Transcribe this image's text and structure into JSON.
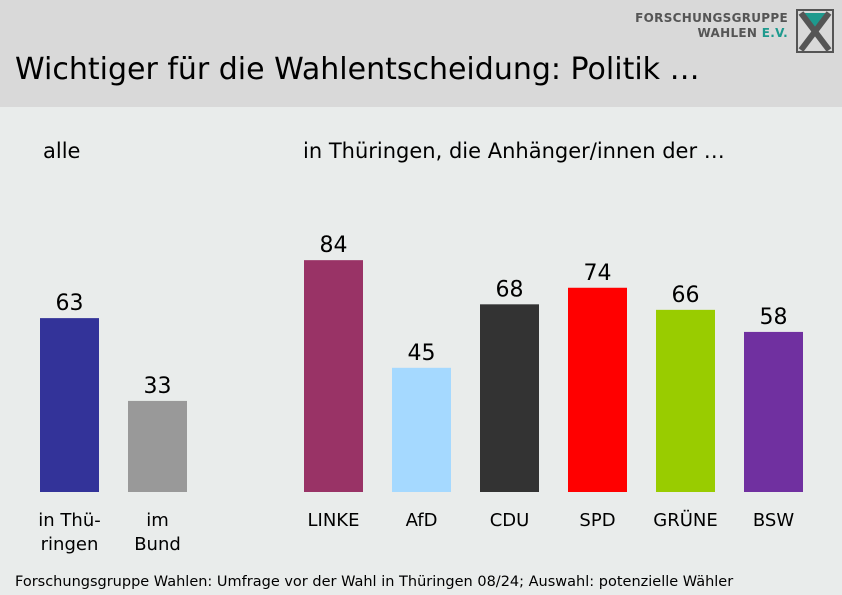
{
  "header": {
    "title": "Wichtiger für die Wahlentscheidung: Politik …",
    "logo_line1": "FORSCHUNGSGRUPPE",
    "logo_line2": "WAHLEN",
    "logo_suffix": "E.V."
  },
  "left_label": "alle",
  "right_label": "in Thüringen, die Anhänger/innen der …",
  "footer": "Forschungsgruppe Wahlen: Umfrage vor der Wahl in Thüringen 08/24;  Auswahl: potenzielle Wähler",
  "chart_data": [
    {
      "type": "bar",
      "title": "alle",
      "categories": [
        "in Thü-\nringen",
        "im\nBund"
      ],
      "values": [
        63,
        33
      ],
      "colors": [
        "#333399",
        "#999999"
      ],
      "ylim": [
        0,
        100
      ]
    },
    {
      "type": "bar",
      "title": "in Thüringen, die Anhänger/innen der …",
      "categories": [
        "LINKE",
        "AfD",
        "CDU",
        "SPD",
        "GRÜNE",
        "BSW"
      ],
      "values": [
        84,
        45,
        68,
        74,
        66,
        58
      ],
      "colors": [
        "#993366",
        "#a5d9ff",
        "#333333",
        "#ff0000",
        "#99cc00",
        "#7030a0"
      ],
      "ylim": [
        0,
        100
      ]
    }
  ]
}
